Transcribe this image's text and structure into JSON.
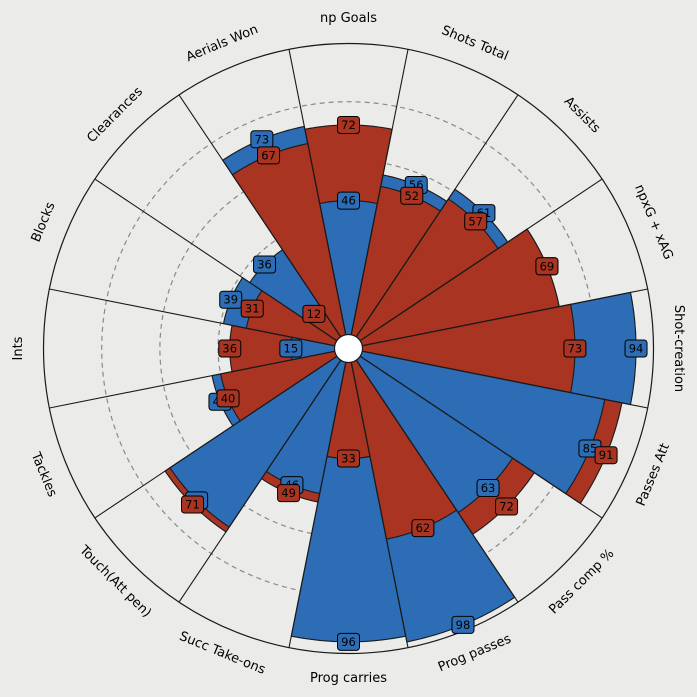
{
  "chart_data": {
    "type": "pizza",
    "params": [
      "np Goals",
      "Shots Total",
      "Assists",
      "npxG + xAG",
      "Shot-creation",
      "Passes Att",
      "Pass comp %",
      "Prog passes",
      "Prog carries",
      "Succ Take-ons",
      "Touch(Att pen)",
      "Tackles",
      "Ints",
      "Blocks",
      "Clearances",
      "Aerials Won"
    ],
    "rlim": [
      0,
      100
    ],
    "gridlines": [
      20,
      40,
      60,
      80
    ],
    "series": [
      {
        "color": "#2c6db5",
        "values": [
          46,
          56,
          61,
          69,
          94,
          85,
          63,
          98,
          96,
          46,
          69,
          43,
          15,
          39,
          36,
          73
        ]
      },
      {
        "color": "#a93422",
        "values": [
          72,
          52,
          57,
          69,
          73,
          91,
          72,
          62,
          33,
          49,
          71,
          40,
          36,
          31,
          12,
          67
        ]
      }
    ],
    "colors": {
      "background": "#ebebe9",
      "outline": "#1a1a1a",
      "grid": "#8a8a8a"
    }
  }
}
